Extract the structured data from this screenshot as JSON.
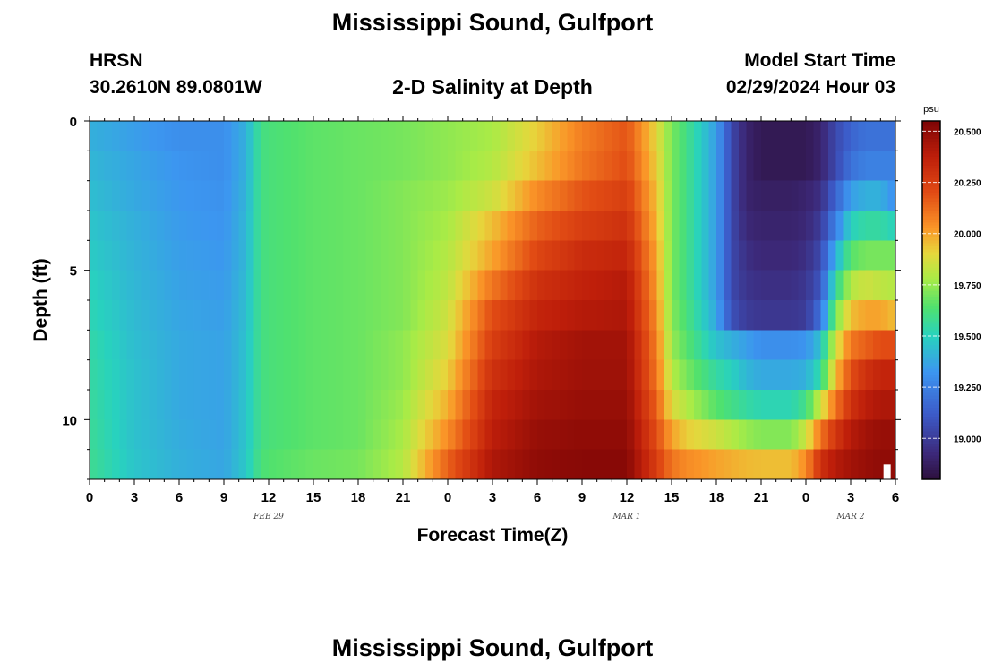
{
  "title": "Mississippi Sound, Gulfport",
  "station": {
    "id": "HRSN",
    "coords": "30.2610N  89.0801W"
  },
  "subtitle": "2-D Salinity at Depth",
  "model": {
    "label": "Model Start Time",
    "value": "02/29/2024 Hour 03"
  },
  "chart_data": {
    "type": "heatmap",
    "title": "2-D Salinity at Depth",
    "xlabel": "Forecast Time(Z)",
    "ylabel": "Depth (ft)",
    "colorbar": {
      "unit": "psu",
      "range": [
        18.8,
        20.55
      ],
      "ticks": [
        "20.500",
        "20.250",
        "20.000",
        "19.750",
        "19.500",
        "19.250",
        "19.000"
      ],
      "tick_values": [
        20.5,
        20.25,
        20.0,
        19.75,
        19.5,
        19.25,
        19.0
      ]
    },
    "x_ticks": [
      "0",
      "3",
      "6",
      "9",
      "12",
      "15",
      "18",
      "21",
      "0",
      "3",
      "6",
      "9",
      "12",
      "15",
      "18",
      "21",
      "0",
      "3",
      "6"
    ],
    "x_range_hours": [
      0,
      54
    ],
    "date_labels": [
      {
        "text": "FEB 29",
        "hour": 12
      },
      {
        "text": "MAR 1",
        "hour": 36
      },
      {
        "text": "MAR 2",
        "hour": 51
      }
    ],
    "y_ticks": [
      "0",
      "5",
      "10"
    ],
    "y_range_ft": [
      0,
      12
    ],
    "depth_levels_ft": [
      0.5,
      1.5,
      2.5,
      3.5,
      4.5,
      5.5,
      6.5,
      7.5,
      8.5,
      9.5,
      10.5,
      11.5
    ],
    "time_hours": [
      0,
      3,
      6,
      9,
      10.5,
      11.5,
      12,
      15,
      18,
      21,
      24,
      27,
      30,
      33,
      36,
      38,
      39,
      40,
      42,
      43,
      44,
      45,
      46,
      47,
      48,
      49,
      50,
      51,
      52,
      53,
      54
    ],
    "salinity_psu": [
      [
        19.4,
        19.35,
        19.3,
        19.3,
        19.4,
        19.6,
        19.62,
        19.66,
        19.68,
        19.7,
        19.74,
        19.78,
        19.92,
        20.08,
        20.18,
        19.9,
        19.7,
        19.6,
        19.35,
        19.05,
        18.9,
        18.85,
        18.85,
        18.85,
        18.85,
        18.9,
        19.05,
        19.15,
        19.2,
        19.2,
        19.2
      ],
      [
        19.42,
        19.37,
        19.32,
        19.3,
        19.4,
        19.6,
        19.62,
        19.66,
        19.68,
        19.7,
        19.74,
        19.8,
        19.95,
        20.1,
        20.2,
        19.92,
        19.7,
        19.6,
        19.35,
        19.05,
        18.9,
        18.85,
        18.85,
        18.85,
        18.85,
        18.9,
        19.05,
        19.2,
        19.25,
        19.25,
        19.25
      ],
      [
        19.44,
        19.38,
        19.33,
        19.31,
        19.41,
        19.6,
        19.62,
        19.66,
        19.68,
        19.72,
        19.76,
        19.85,
        20.05,
        20.18,
        20.25,
        19.95,
        19.7,
        19.6,
        19.35,
        19.05,
        18.9,
        18.88,
        18.88,
        18.88,
        18.9,
        18.95,
        19.15,
        19.35,
        19.4,
        19.4,
        19.3
      ],
      [
        19.46,
        19.4,
        19.34,
        19.32,
        19.42,
        19.6,
        19.62,
        19.66,
        19.68,
        19.72,
        19.78,
        19.95,
        20.15,
        20.25,
        20.3,
        19.97,
        19.7,
        19.6,
        19.35,
        19.05,
        18.92,
        18.9,
        18.9,
        18.9,
        18.92,
        19.0,
        19.25,
        19.5,
        19.55,
        19.55,
        19.5
      ],
      [
        19.48,
        19.41,
        19.35,
        19.33,
        19.42,
        19.6,
        19.62,
        19.66,
        19.68,
        19.72,
        19.8,
        20.0,
        20.22,
        20.32,
        20.35,
        20.0,
        19.7,
        19.6,
        19.35,
        19.05,
        18.95,
        18.92,
        18.92,
        18.92,
        18.95,
        19.05,
        19.4,
        19.65,
        19.7,
        19.7,
        19.7
      ],
      [
        19.5,
        19.42,
        19.36,
        19.34,
        19.43,
        19.6,
        19.62,
        19.66,
        19.68,
        19.72,
        19.82,
        20.1,
        20.3,
        20.36,
        20.4,
        20.02,
        19.7,
        19.6,
        19.35,
        19.05,
        18.97,
        18.95,
        18.95,
        18.95,
        18.98,
        19.1,
        19.55,
        19.8,
        19.85,
        19.82,
        19.8
      ],
      [
        19.52,
        19.43,
        19.37,
        19.35,
        19.44,
        19.6,
        19.62,
        19.66,
        19.68,
        19.72,
        19.85,
        20.2,
        20.35,
        20.4,
        20.42,
        20.05,
        19.72,
        19.62,
        19.38,
        19.08,
        19.0,
        18.98,
        18.98,
        18.98,
        19.0,
        19.2,
        19.7,
        19.95,
        20.0,
        20.0,
        19.95
      ],
      [
        19.54,
        19.44,
        19.38,
        19.36,
        19.45,
        19.6,
        19.62,
        19.66,
        19.68,
        19.74,
        19.88,
        20.25,
        20.4,
        20.45,
        20.45,
        20.08,
        19.75,
        19.65,
        19.45,
        19.4,
        19.35,
        19.3,
        19.3,
        19.3,
        19.32,
        19.45,
        19.85,
        20.1,
        20.15,
        20.2,
        20.2
      ],
      [
        19.55,
        19.45,
        19.38,
        19.36,
        19.45,
        19.6,
        19.62,
        19.66,
        19.68,
        19.74,
        19.92,
        20.3,
        20.42,
        20.46,
        20.46,
        20.1,
        19.8,
        19.7,
        19.55,
        19.5,
        19.42,
        19.38,
        19.38,
        19.38,
        19.4,
        19.55,
        19.95,
        20.2,
        20.3,
        20.35,
        20.35
      ],
      [
        19.56,
        19.45,
        19.38,
        19.36,
        19.46,
        19.6,
        19.62,
        19.66,
        19.68,
        19.76,
        19.98,
        20.35,
        20.45,
        20.48,
        20.48,
        20.15,
        19.88,
        19.8,
        19.65,
        19.6,
        19.55,
        19.52,
        19.52,
        19.52,
        19.6,
        19.85,
        20.1,
        20.3,
        20.38,
        20.42,
        20.42
      ],
      [
        19.57,
        19.45,
        19.39,
        19.36,
        19.46,
        19.6,
        19.62,
        19.66,
        19.68,
        19.78,
        20.05,
        20.38,
        20.48,
        20.5,
        20.5,
        20.2,
        20.0,
        19.92,
        19.85,
        19.8,
        19.75,
        19.72,
        19.72,
        19.72,
        19.85,
        20.1,
        20.28,
        20.4,
        20.45,
        20.48,
        20.48
      ],
      [
        19.58,
        19.46,
        19.4,
        19.37,
        19.47,
        19.62,
        19.64,
        19.68,
        19.7,
        19.8,
        20.15,
        20.42,
        20.5,
        20.52,
        20.52,
        20.25,
        20.1,
        20.05,
        20.0,
        19.98,
        19.96,
        19.95,
        19.95,
        19.95,
        20.05,
        20.3,
        20.4,
        20.45,
        20.48,
        20.5,
        20.5
      ]
    ]
  },
  "footer_title": "Mississippi Sound, Gulfport"
}
